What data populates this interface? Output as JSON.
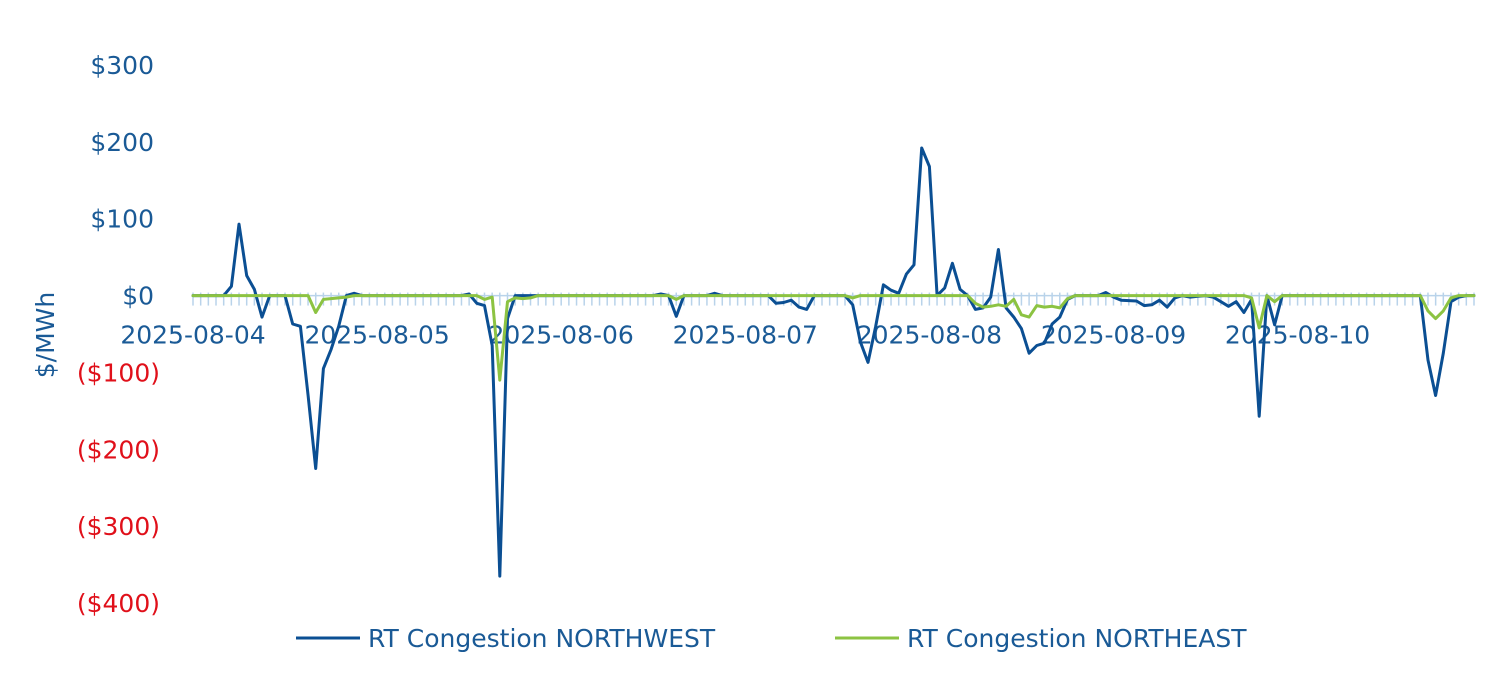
{
  "chart_data": {
    "type": "line",
    "ylabel": "$/MWh",
    "ylim": [
      -400,
      300
    ],
    "y_ticks": [
      {
        "value": 300,
        "label": "$300"
      },
      {
        "value": 200,
        "label": "$200"
      },
      {
        "value": 100,
        "label": "$100"
      },
      {
        "value": 0,
        "label": "$0"
      },
      {
        "value": -100,
        "label": "($100)"
      },
      {
        "value": -200,
        "label": "($200)"
      },
      {
        "value": -300,
        "label": "($300)"
      },
      {
        "value": -400,
        "label": "($400)"
      }
    ],
    "x_ticks": [
      "2025-08-04",
      "2025-08-05",
      "2025-08-06",
      "2025-08-07",
      "2025-08-08",
      "2025-08-09",
      "2025-08-10"
    ],
    "x_unit": "hour",
    "grid": false,
    "legend_position": "bottom",
    "colors": {
      "positive_tick": "#1a5a96",
      "negative_tick": "#e0101a",
      "axis_ticks": "#b9d3ea"
    },
    "series": [
      {
        "name": "RT Congestion NORTHWEST",
        "color": "#0b4f93",
        "points": [
          [
            0,
            0
          ],
          [
            4,
            0
          ],
          [
            5,
            12
          ],
          [
            6,
            93
          ],
          [
            7,
            26
          ],
          [
            8,
            8
          ],
          [
            9,
            -28
          ],
          [
            10,
            0
          ],
          [
            12,
            0
          ],
          [
            13,
            -37
          ],
          [
            14,
            -40
          ],
          [
            15,
            -130
          ],
          [
            16,
            -225
          ],
          [
            17,
            -95
          ],
          [
            18,
            -70
          ],
          [
            19,
            -40
          ],
          [
            20,
            0
          ],
          [
            21,
            3
          ],
          [
            22,
            0
          ],
          [
            35,
            0
          ],
          [
            36,
            2
          ],
          [
            37,
            -10
          ],
          [
            38,
            -13
          ],
          [
            39,
            -65
          ],
          [
            40,
            -365
          ],
          [
            41,
            -30
          ],
          [
            42,
            0
          ],
          [
            60,
            0
          ],
          [
            61,
            2
          ],
          [
            62,
            0
          ],
          [
            63,
            -27
          ],
          [
            64,
            0
          ],
          [
            67,
            0
          ],
          [
            68,
            3
          ],
          [
            69,
            0
          ],
          [
            75,
            0
          ],
          [
            76,
            -10
          ],
          [
            77,
            -9
          ],
          [
            78,
            -6
          ],
          [
            79,
            -15
          ],
          [
            80,
            -18
          ],
          [
            81,
            0
          ],
          [
            85,
            0
          ],
          [
            86,
            -12
          ],
          [
            87,
            -60
          ],
          [
            88,
            -87
          ],
          [
            89,
            -40
          ],
          [
            90,
            14
          ],
          [
            91,
            7
          ],
          [
            92,
            3
          ],
          [
            93,
            28
          ],
          [
            94,
            40
          ],
          [
            95,
            192
          ],
          [
            96,
            168
          ],
          [
            97,
            0
          ],
          [
            98,
            10
          ],
          [
            99,
            42
          ],
          [
            100,
            8
          ],
          [
            101,
            0
          ],
          [
            102,
            -18
          ],
          [
            103,
            -16
          ],
          [
            104,
            -2
          ],
          [
            105,
            60
          ],
          [
            106,
            -16
          ],
          [
            107,
            -28
          ],
          [
            108,
            -43
          ],
          [
            109,
            -75
          ],
          [
            110,
            -65
          ],
          [
            111,
            -62
          ],
          [
            112,
            -37
          ],
          [
            113,
            -28
          ],
          [
            114,
            -5
          ],
          [
            115,
            0
          ],
          [
            118,
            0
          ],
          [
            119,
            4
          ],
          [
            120,
            -2
          ],
          [
            121,
            -6
          ],
          [
            123,
            -7
          ],
          [
            124,
            -13
          ],
          [
            125,
            -12
          ],
          [
            126,
            -6
          ],
          [
            127,
            -15
          ],
          [
            128,
            -3
          ],
          [
            129,
            0
          ],
          [
            130,
            -2
          ],
          [
            131,
            -1
          ],
          [
            132,
            0
          ],
          [
            133,
            -2
          ],
          [
            134,
            -8
          ],
          [
            135,
            -14
          ],
          [
            136,
            -8
          ],
          [
            137,
            -22
          ],
          [
            138,
            -5
          ],
          [
            139,
            -157
          ],
          [
            140,
            0
          ],
          [
            141,
            -38
          ],
          [
            142,
            0
          ],
          [
            160,
            0
          ],
          [
            161,
            -84
          ],
          [
            162,
            -130
          ],
          [
            163,
            -75
          ],
          [
            164,
            -8
          ],
          [
            165,
            -2
          ],
          [
            166,
            0
          ],
          [
            167,
            0
          ]
        ]
      },
      {
        "name": "RT Congestion NORTHEAST",
        "color": "#8cc342",
        "points": [
          [
            0,
            0
          ],
          [
            15,
            0
          ],
          [
            16,
            -22
          ],
          [
            17,
            -5
          ],
          [
            18,
            -4
          ],
          [
            19,
            -3
          ],
          [
            20,
            -2
          ],
          [
            21,
            0
          ],
          [
            37,
            0
          ],
          [
            38,
            -5
          ],
          [
            39,
            -2
          ],
          [
            40,
            -110
          ],
          [
            41,
            -8
          ],
          [
            42,
            -3
          ],
          [
            43,
            -4
          ],
          [
            44,
            -3
          ],
          [
            45,
            0
          ],
          [
            62,
            0
          ],
          [
            63,
            -5
          ],
          [
            64,
            0
          ],
          [
            85,
            0
          ],
          [
            86,
            -3
          ],
          [
            87,
            0
          ],
          [
            101,
            0
          ],
          [
            102,
            -10
          ],
          [
            103,
            -15
          ],
          [
            104,
            -14
          ],
          [
            105,
            -12
          ],
          [
            106,
            -14
          ],
          [
            107,
            -5
          ],
          [
            108,
            -25
          ],
          [
            109,
            -28
          ],
          [
            110,
            -13
          ],
          [
            111,
            -15
          ],
          [
            112,
            -14
          ],
          [
            113,
            -16
          ],
          [
            114,
            -4
          ],
          [
            115,
            0
          ],
          [
            137,
            0
          ],
          [
            138,
            -3
          ],
          [
            139,
            -42
          ],
          [
            140,
            0
          ],
          [
            141,
            -8
          ],
          [
            142,
            0
          ],
          [
            160,
            0
          ],
          [
            161,
            -20
          ],
          [
            162,
            -30
          ],
          [
            163,
            -20
          ],
          [
            164,
            -3
          ],
          [
            165,
            0
          ],
          [
            167,
            0
          ]
        ]
      }
    ]
  }
}
